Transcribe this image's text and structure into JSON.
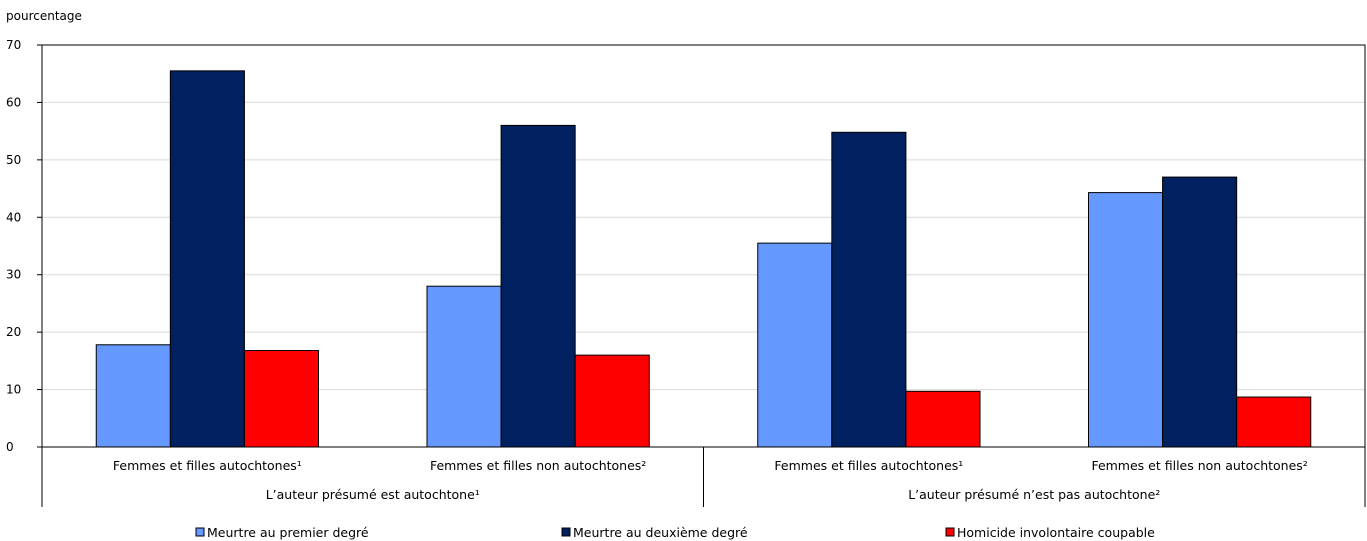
{
  "chart_data": {
    "type": "bar",
    "ylabel": "pourcentage",
    "ylim": [
      0,
      70
    ],
    "yticks": [
      0,
      10,
      20,
      30,
      40,
      50,
      60,
      70
    ],
    "grid": true,
    "legend_position": "bottom",
    "categories": [
      "Femmes et filles autochtones¹",
      "Femmes et filles non autochtones²",
      "Femmes et filles autochtones¹",
      "Femmes et filles non autochtones²"
    ],
    "groups": [
      {
        "label": "L’auteur présumé est autochtone¹",
        "category_indices": [
          0,
          1
        ]
      },
      {
        "label": "L’auteur présumé n’est pas autochtone²",
        "category_indices": [
          2,
          3
        ]
      }
    ],
    "series": [
      {
        "name": "Meurtre au premier degré",
        "color": "#6699ff",
        "values": [
          17.8,
          28.0,
          35.5,
          44.3
        ]
      },
      {
        "name": "Meurtre au deuxième degré",
        "color": "#002060",
        "values": [
          65.5,
          56.0,
          54.8,
          47.0
        ]
      },
      {
        "name": "Homicide involontaire coupable",
        "color": "#ff0000",
        "values": [
          16.8,
          16.0,
          9.7,
          8.7
        ]
      }
    ]
  }
}
